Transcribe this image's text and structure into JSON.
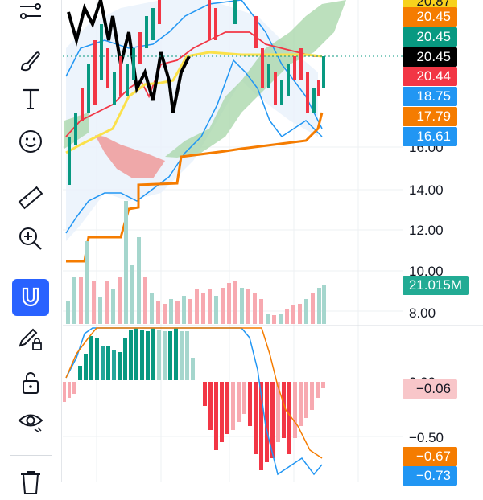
{
  "toolbar": {
    "tools": [
      {
        "name": "trend-line-tool-icon",
        "active": false
      },
      {
        "name": "brush-tool-icon",
        "active": false
      },
      {
        "name": "text-tool-icon",
        "active": false
      },
      {
        "name": "emoji-tool-icon",
        "active": false
      },
      {
        "name": "ruler-tool-icon",
        "active": false
      },
      {
        "name": "zoom-in-tool-icon",
        "active": false
      },
      {
        "name": "magnet-mode-icon",
        "active": true
      },
      {
        "name": "lock-drawings-icon",
        "active": false
      },
      {
        "name": "lock-icon",
        "active": false
      },
      {
        "name": "eye-visibility-icon",
        "active": false
      },
      {
        "name": "trash-icon",
        "active": false
      }
    ],
    "accent": "#2962ff"
  },
  "price_labels": [
    {
      "text": "20.87",
      "color": "#f7d21d",
      "text_color": "#131722"
    },
    {
      "text": "20.45",
      "color": "#f57c00",
      "text_color": "#ffffff"
    },
    {
      "text": "20.45",
      "color": "#089981",
      "text_color": "#ffffff"
    },
    {
      "text": "20.45",
      "color": "#000000",
      "text_color": "#ffffff"
    },
    {
      "text": "20.44",
      "color": "#f23645",
      "text_color": "#ffffff"
    },
    {
      "text": "18.75",
      "color": "#2196f3",
      "text_color": "#ffffff"
    },
    {
      "text": "17.79",
      "color": "#f57c00",
      "text_color": "#ffffff"
    },
    {
      "text": "16.61",
      "color": "#2196f3",
      "text_color": "#ffffff"
    }
  ],
  "price_axis": [
    "16.00",
    "14.00",
    "12.00",
    "10.00",
    "8.00"
  ],
  "volume_label": {
    "text": "21.015M",
    "color": "#22ab94"
  },
  "macd_axis": [
    "0.00",
    "−0.50"
  ],
  "macd_labels": [
    {
      "text": "−0.06",
      "color": "#f8c6c9",
      "text_color": "#131722"
    },
    {
      "text": "−0.67",
      "color": "#f57c00",
      "text_color": "#ffffff"
    },
    {
      "text": "−0.73",
      "color": "#2196f3",
      "text_color": "#ffffff"
    }
  ],
  "colors": {
    "up": "#089981",
    "down": "#f23645",
    "volume_up": "#a5d6cd",
    "volume_down": "#f7a9b0",
    "macd_line": "#2196f3",
    "signal_line": "#f57c00",
    "cloud_green": "#a5d6a7",
    "cloud_red": "#ef9a9a"
  }
}
